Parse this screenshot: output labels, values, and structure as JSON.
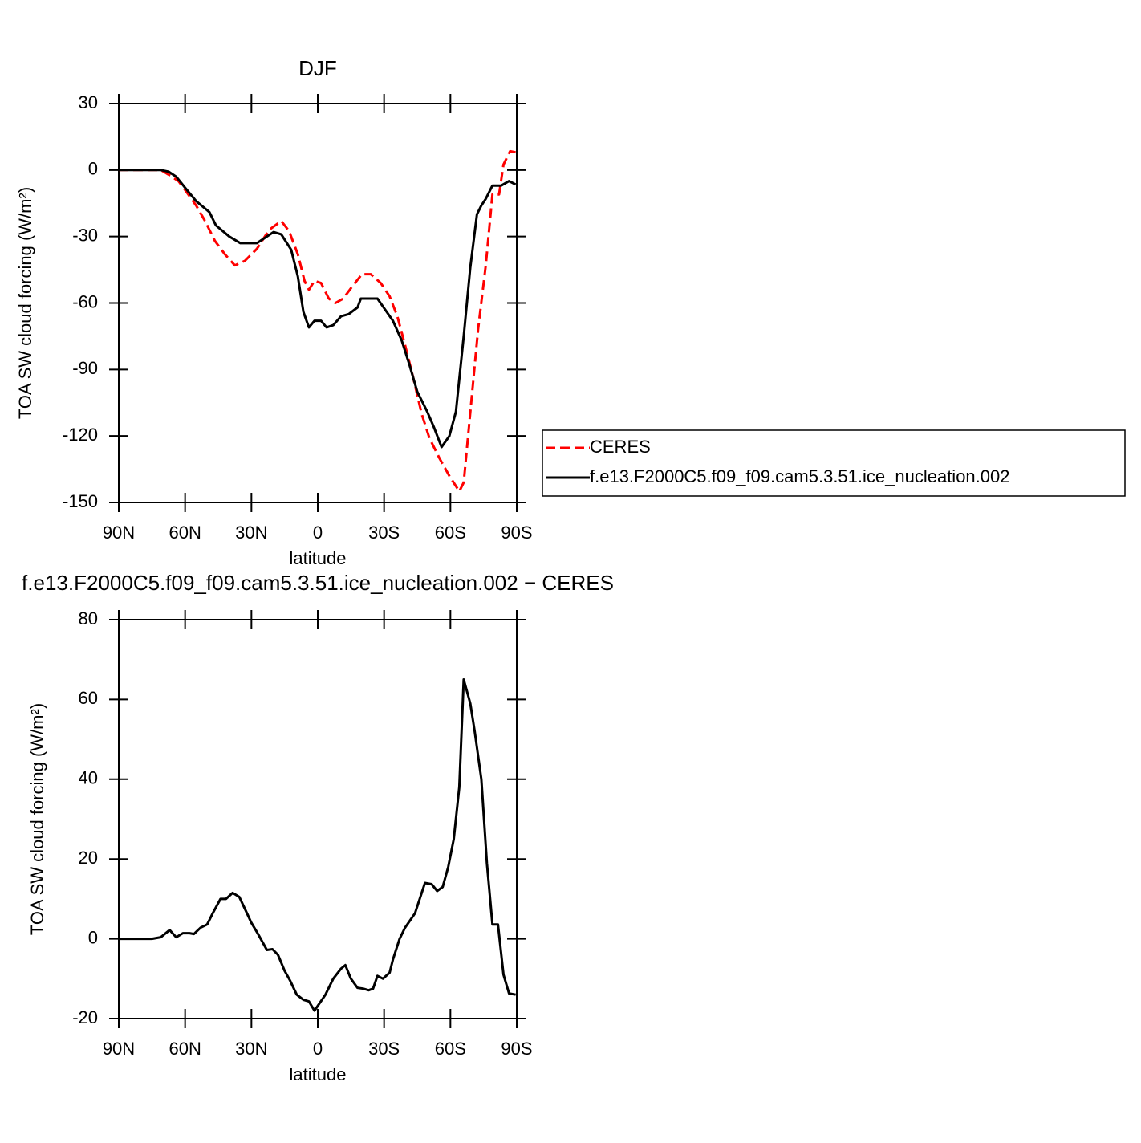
{
  "chart_data": [
    {
      "type": "line",
      "title": "DJF",
      "xlabel": "latitude",
      "ylabel": "TOA SW cloud forcing (W/m²)",
      "xlim": [
        90,
        -90
      ],
      "xticks": [
        {
          "value": 90,
          "label": "90N"
        },
        {
          "value": 60,
          "label": "60N"
        },
        {
          "value": 30,
          "label": "30N"
        },
        0,
        {
          "value": -30,
          "label": "30S"
        },
        {
          "value": -60,
          "label": "60S"
        },
        {
          "value": -90,
          "label": "90S"
        }
      ],
      "ylim": [
        -150,
        30
      ],
      "yticks": [
        -150,
        -120,
        -90,
        -60,
        -30,
        0,
        30
      ],
      "legend": "right",
      "series": [
        {
          "name": "CERES",
          "color": "#ff0000",
          "linestyle": "dashed",
          "x": [
            90,
            71,
            67.5,
            63,
            60,
            55,
            51,
            46.5,
            42,
            37.5,
            33,
            27.5,
            22,
            16.5,
            13,
            9,
            6,
            4,
            1.5,
            -1.5,
            -5,
            -8,
            -11.5,
            -16,
            -20,
            -24,
            -28.5,
            -32.5,
            -36,
            -39.5,
            -43,
            -47,
            -50.5,
            -55,
            -59.5,
            -64,
            -66,
            -69.5,
            -72.5,
            -76,
            -79,
            -82,
            -84,
            -87,
            -89.5
          ],
          "values": [
            0,
            0,
            -2,
            -5,
            -9,
            -16,
            -23,
            -32,
            -38,
            -43,
            -41,
            -35.5,
            -27,
            -23,
            -27.5,
            -38,
            -50,
            -54,
            -50,
            -51,
            -58,
            -60,
            -58,
            -52,
            -47,
            -47,
            -51,
            -57,
            -66,
            -79,
            -93,
            -110,
            -121,
            -130,
            -138,
            -145,
            -141,
            -104,
            -72,
            -43,
            -11,
            -11,
            2.5,
            8.5,
            8
          ]
        },
        {
          "name": "f.e13.F2000C5.f09_f09.cam5.3.51.ice_nucleation.002",
          "color": "#000000",
          "linestyle": "solid",
          "x": [
            90,
            71,
            67.5,
            64,
            60,
            55,
            49,
            46,
            40,
            35,
            27.5,
            20,
            16.5,
            12,
            9,
            6.5,
            4,
            1.5,
            -1.5,
            -4,
            -7,
            -10.5,
            -14,
            -18,
            -19.5,
            -27,
            -30.5,
            -34,
            -38,
            -41.5,
            -45,
            -49.5,
            -52.5,
            -56,
            -59.5,
            -62.5,
            -66,
            -69,
            -72,
            -74,
            -76,
            -79,
            -83,
            -86.5,
            -89.5
          ],
          "values": [
            0,
            0,
            -0.7,
            -3,
            -8,
            -14,
            -19,
            -25,
            -30,
            -33,
            -33,
            -28,
            -29,
            -36,
            -48,
            -64,
            -71,
            -68,
            -68,
            -71,
            -70,
            -66,
            -65,
            -62,
            -58,
            -58,
            -63,
            -68,
            -77,
            -88,
            -100,
            -109,
            -116,
            -125,
            -120,
            -109,
            -75,
            -44,
            -20,
            -16,
            -13,
            -7,
            -7,
            -5,
            -6.5
          ]
        }
      ]
    },
    {
      "type": "line",
      "title": "f.e13.F2000C5.f09_f09.cam5.3.51.ice_nucleation.002 − CERES",
      "xlabel": "latitude",
      "ylabel": "TOA SW cloud forcing (W/m²)",
      "xlim": [
        90,
        -90
      ],
      "xticks": [
        {
          "value": 90,
          "label": "90N"
        },
        {
          "value": 60,
          "label": "60N"
        },
        {
          "value": 30,
          "label": "30N"
        },
        0,
        {
          "value": -30,
          "label": "30S"
        },
        {
          "value": -60,
          "label": "60S"
        },
        {
          "value": -90,
          "label": "90S"
        }
      ],
      "ylim": [
        -20,
        80
      ],
      "yticks": [
        -20,
        0,
        20,
        40,
        60,
        80
      ],
      "series": [
        {
          "color": "#000000",
          "linestyle": "solid",
          "x": [
            90,
            75,
            71,
            67,
            64,
            61,
            58,
            56,
            53,
            50,
            47.5,
            44,
            41.5,
            38.5,
            35.5,
            32.5,
            30,
            27,
            23,
            20.5,
            18,
            15,
            12.5,
            9.5,
            6.5,
            4,
            1.5,
            -1,
            -3.5,
            -7,
            -10.5,
            -12.5,
            -15,
            -18,
            -20.5,
            -23,
            -25,
            -27,
            -29.5,
            -32.5,
            -34,
            -37,
            -39.5,
            -44,
            -48.5,
            -51.5,
            -54,
            -56.5,
            -59,
            -61.5,
            -64,
            -66,
            -69,
            -71,
            -74,
            -76.5,
            -79,
            -81.5,
            -84,
            -86.5,
            -89.5
          ],
          "values": [
            0,
            0,
            0.4,
            2.2,
            0.4,
            1.4,
            1.4,
            1.2,
            2.8,
            3.6,
            6.4,
            10,
            10,
            11.5,
            10.5,
            7,
            4,
            1.2,
            -2.8,
            -2.6,
            -4,
            -8,
            -10.5,
            -14,
            -15.3,
            -15.7,
            -18,
            -16,
            -14,
            -10,
            -7.5,
            -6.6,
            -10,
            -12.3,
            -12.5,
            -12.9,
            -12.5,
            -9.3,
            -10,
            -8.5,
            -5.2,
            0,
            2.8,
            6.4,
            14,
            13.7,
            12,
            13,
            18,
            25,
            38,
            65,
            59,
            52,
            40,
            19,
            3.6,
            3.6,
            -9,
            -13.7,
            -14
          ]
        }
      ]
    }
  ]
}
